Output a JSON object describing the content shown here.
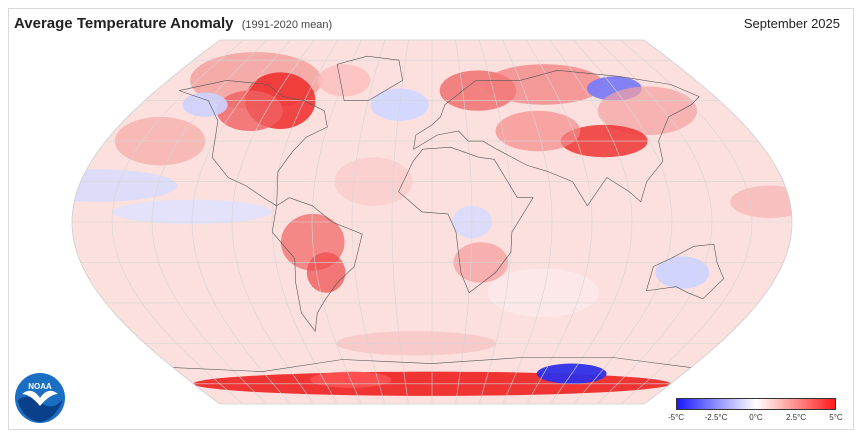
{
  "header": {
    "title": "Average Temperature Anomaly",
    "subtitle": "(1991-2020 mean)",
    "date": "September 2025"
  },
  "logo": {
    "text": "NOAA",
    "icon": "noaa-logo-icon"
  },
  "legend": {
    "ticks": [
      "-5°C",
      "-2.5°C",
      "0°C",
      "2.5°C",
      "5°C"
    ],
    "range": [
      -5,
      5
    ],
    "colors": {
      "cold": "#1a1aff",
      "neutral": "#ffffff",
      "warm": "#ff1a1a"
    }
  },
  "map": {
    "projection": "robinson",
    "graticule": "on",
    "layer": "temperature-anomaly"
  }
}
